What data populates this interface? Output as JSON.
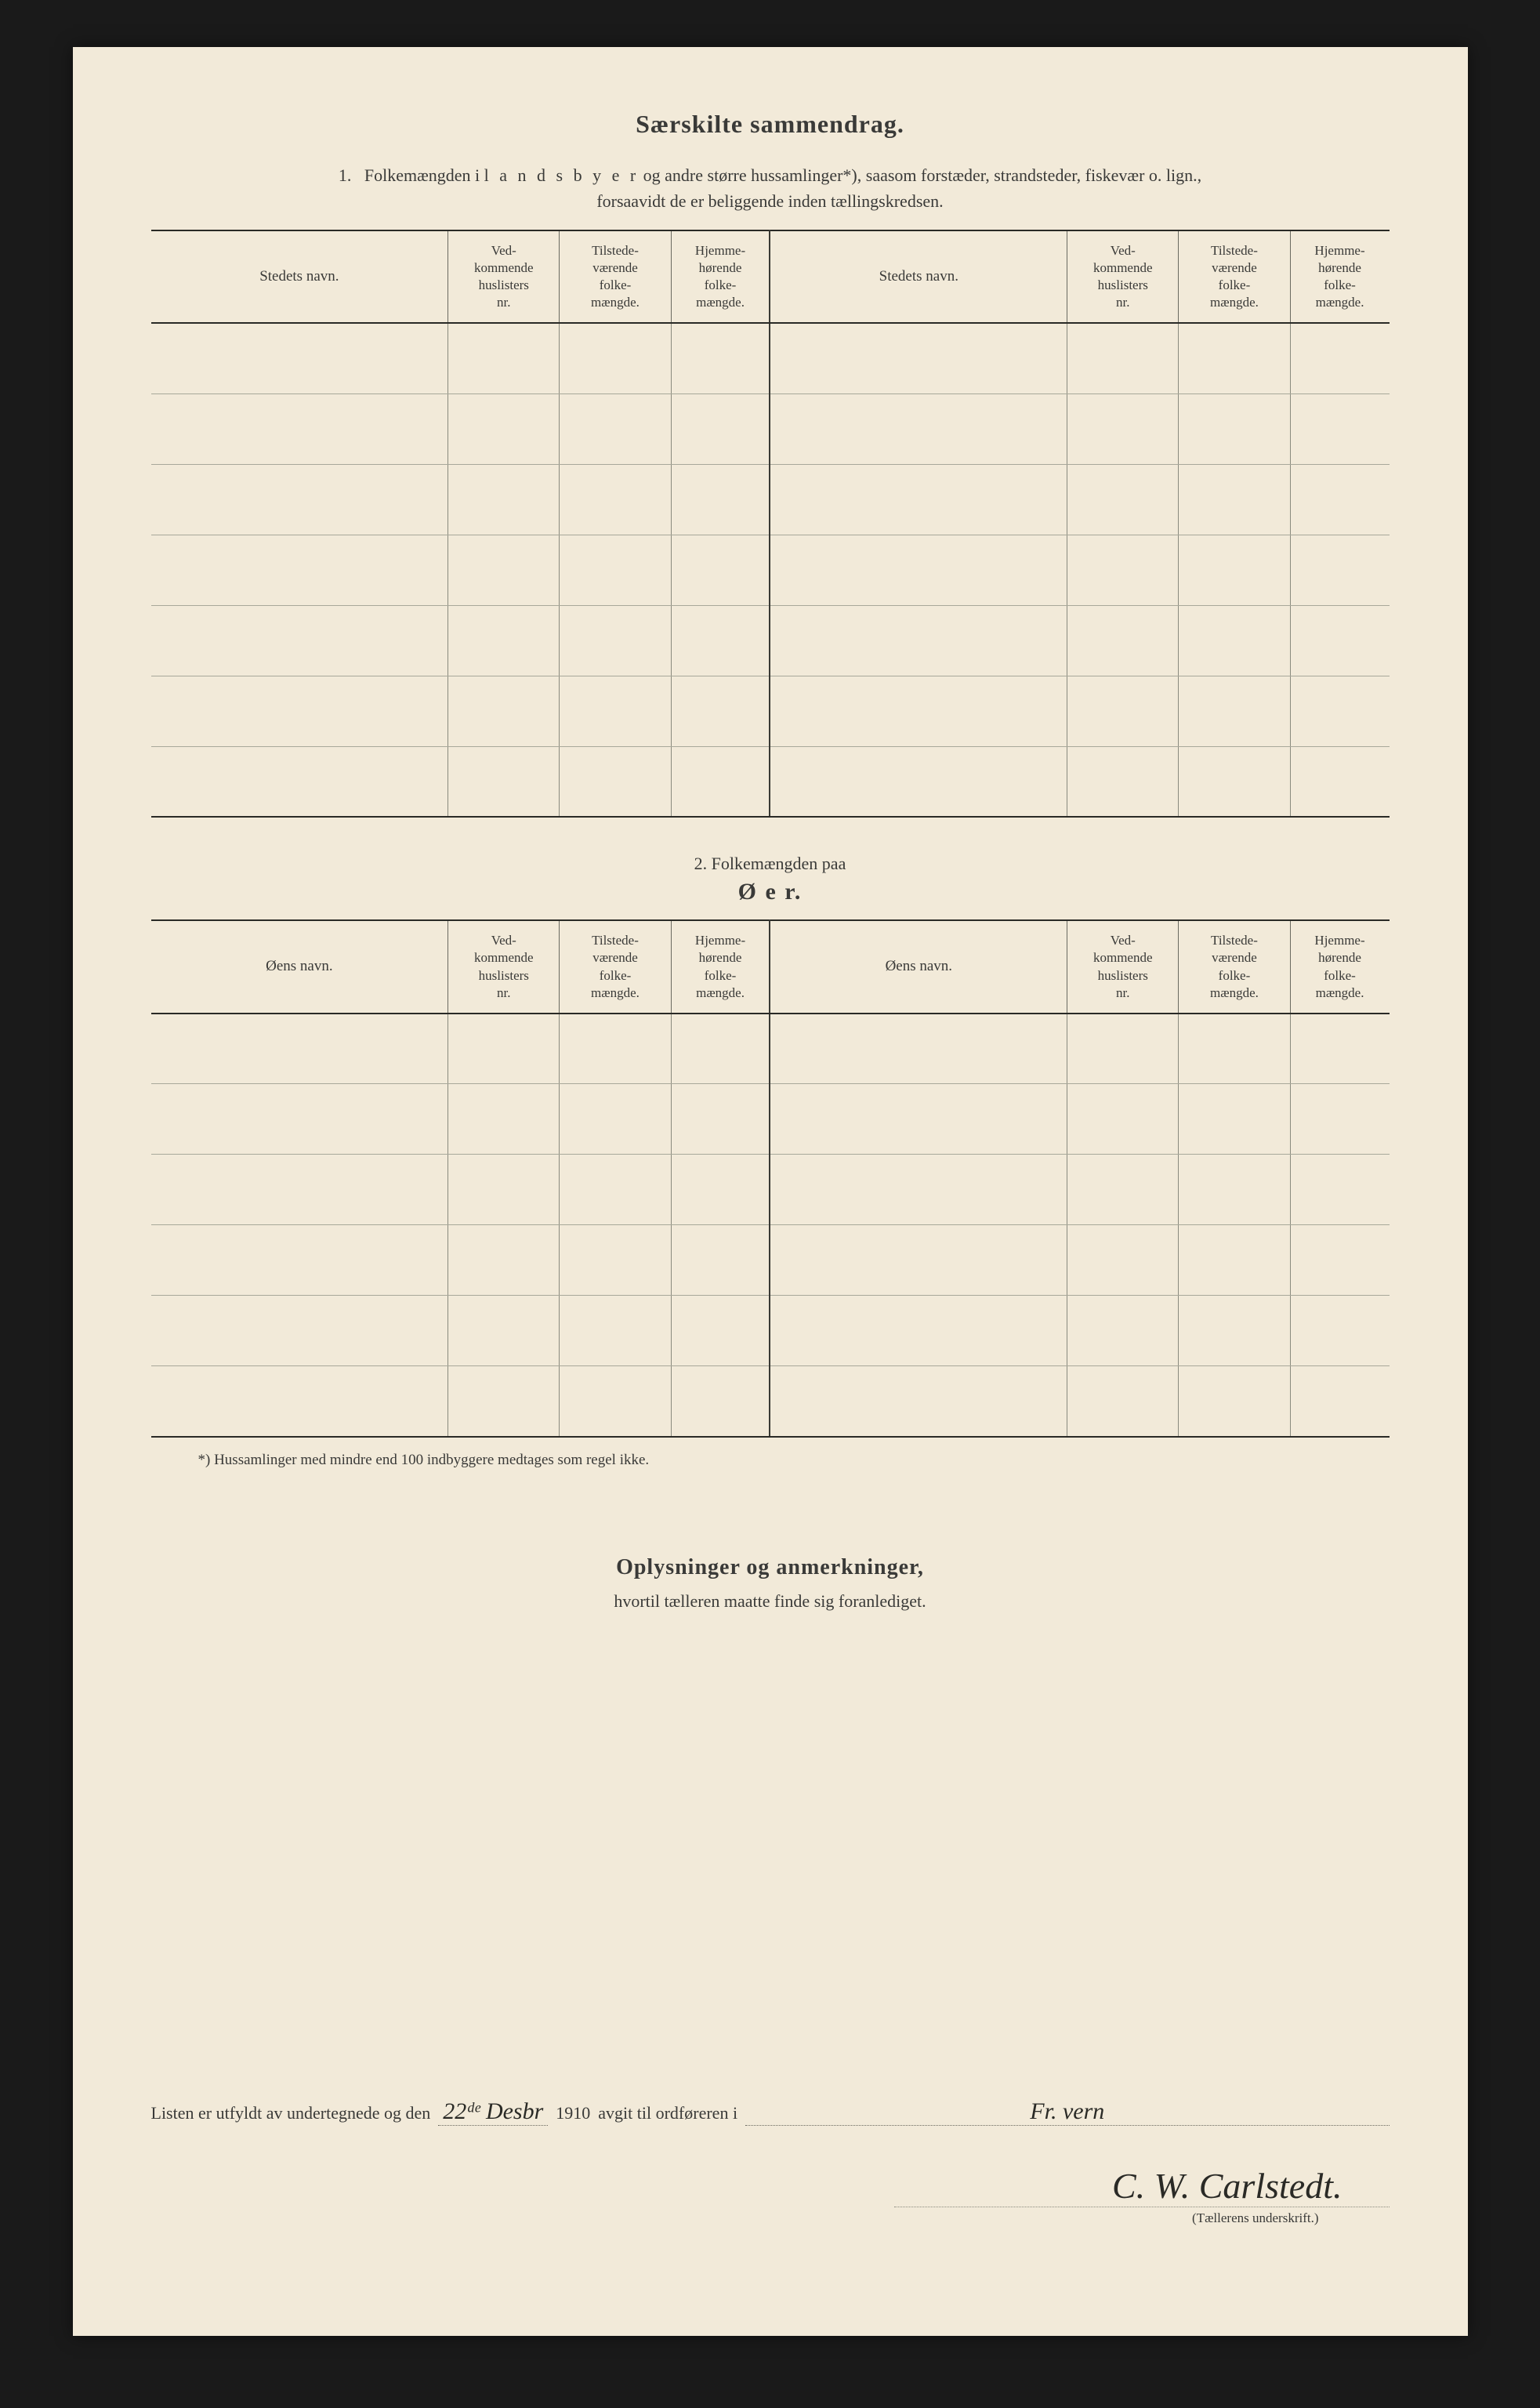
{
  "page": {
    "background_color": "#f2ead9",
    "text_color": "#3a3a38",
    "rule_color": "#2a2a26",
    "grid_color": "#8a8a7e"
  },
  "section1": {
    "title": "Særskilte sammendrag.",
    "intro_num": "1.",
    "intro_a": "Folkemængden i ",
    "intro_spaced": "l a n d s b y e r",
    "intro_b": " og andre større hussamlinger*), saasom forstæder, strandsteder, fiskevær o. lign.,",
    "intro_line2": "forsaavidt de er beliggende inden tællingskredsen.",
    "headers": {
      "name": "Stedets navn.",
      "c1": "Ved-\nkommende\nhuslisters\nnr.",
      "c2": "Tilstede-\nværende\nfolke-\nmængde.",
      "c3": "Hjemme-\nhørende\nfolke-\nmængde."
    },
    "row_count": 7,
    "col_widths_pct": [
      24,
      9,
      9,
      8,
      24,
      9,
      9,
      8
    ]
  },
  "section2": {
    "num_line": "2.    Folkemængden paa",
    "title": "Ø e r.",
    "headers": {
      "name": "Øens navn.",
      "c1": "Ved-\nkommende\nhuslisters\nnr.",
      "c2": "Tilstede-\nværende\nfolke-\nmængde.",
      "c3": "Hjemme-\nhørende\nfolke-\nmængde."
    },
    "row_count": 6,
    "col_widths_pct": [
      24,
      9,
      9,
      8,
      24,
      9,
      9,
      8
    ]
  },
  "footnote": "*)  Hussamlinger med mindre end 100 indbyggere medtages som regel ikke.",
  "section3": {
    "title": "Oplysninger og anmerkninger,",
    "sub": "hvortil tælleren maatte finde sig foranlediget."
  },
  "signature": {
    "prefix": "Listen er utfyldt av undertegnede og den",
    "date_written": "22ᵈᵉ Desbr",
    "year": "1910",
    "mid": "avgit til ordføreren i",
    "place_written": "Fr. vern",
    "name_written": "C. W. Carlstedt.",
    "caption": "(Tællerens underskrift.)"
  }
}
